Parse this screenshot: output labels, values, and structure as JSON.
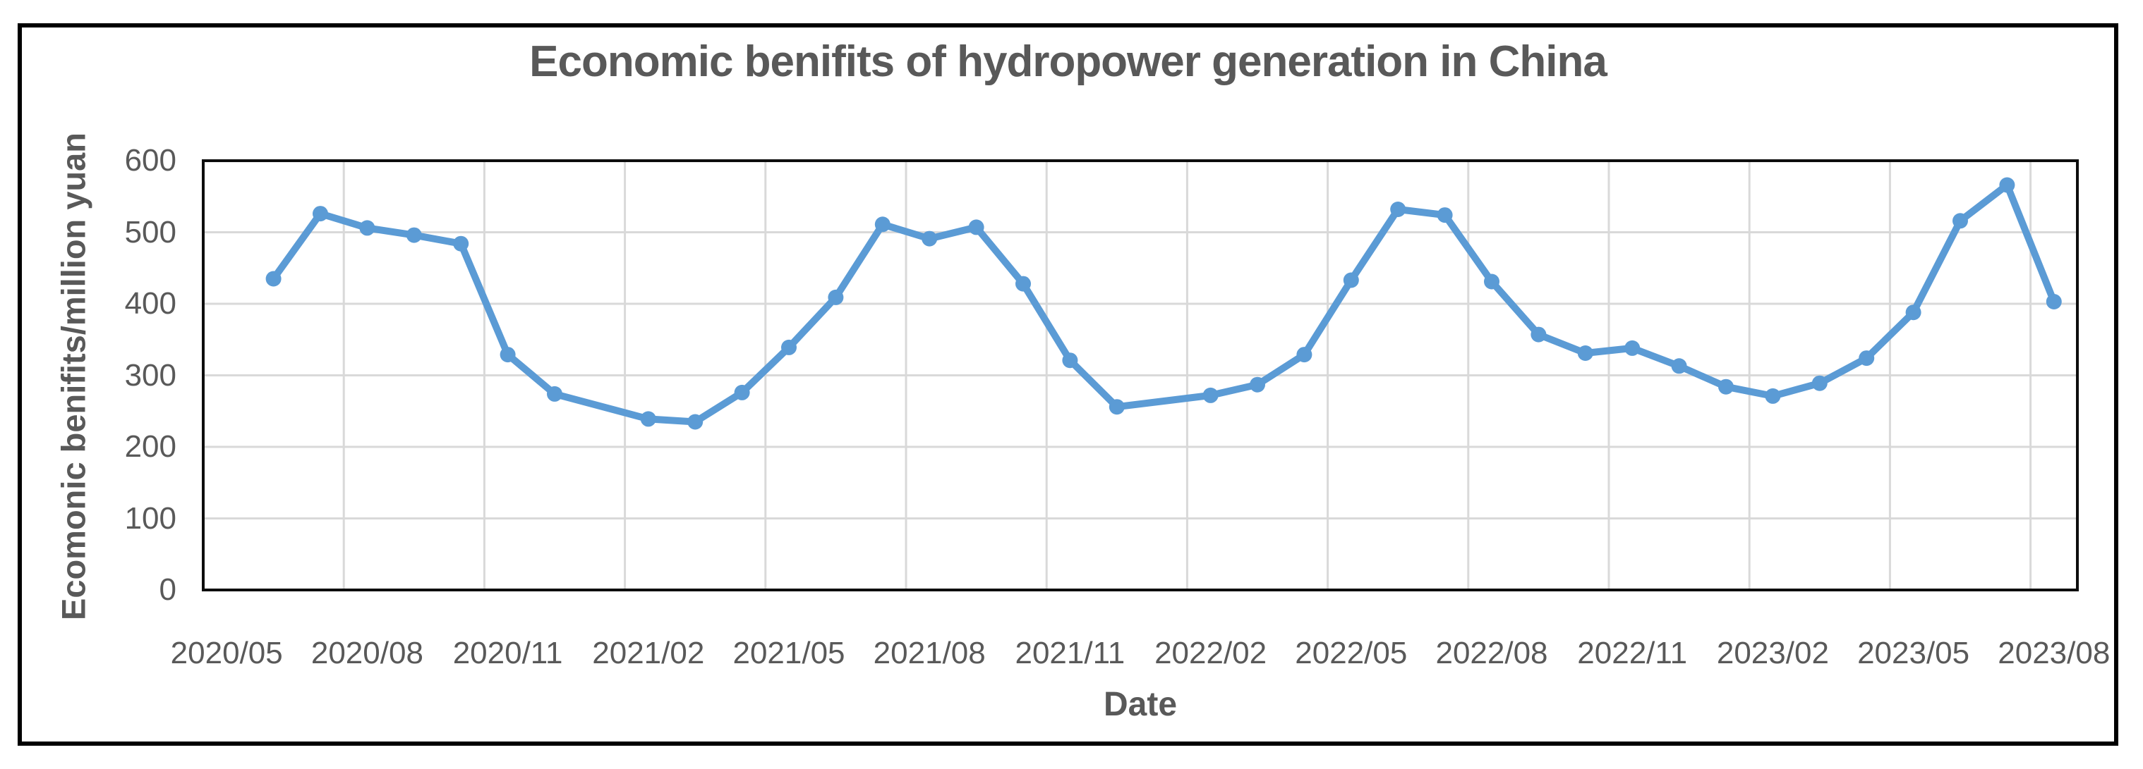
{
  "chart_data": {
    "type": "line",
    "title": "Economic benifits of hydropower generation in China",
    "xlabel": "Date",
    "ylabel": "Ecomonic benifits/million yuan",
    "categories": [
      "2020/05",
      "2020/06",
      "2020/07",
      "2020/08",
      "2020/09",
      "2020/10",
      "2020/11",
      "2020/12",
      "2021/01",
      "2021/02",
      "2021/03",
      "2021/04",
      "2021/05",
      "2021/06",
      "2021/07",
      "2021/08",
      "2021/09",
      "2021/10",
      "2021/11",
      "2021/12",
      "2022/01",
      "2022/02",
      "2022/03",
      "2022/04",
      "2022/05",
      "2022/06",
      "2022/07",
      "2022/08",
      "2022/09",
      "2022/10",
      "2022/11",
      "2022/12",
      "2023/01",
      "2023/02",
      "2023/03",
      "2023/04",
      "2023/05",
      "2023/06",
      "2023/07",
      "2023/08"
    ],
    "values": [
      null,
      435,
      526,
      506,
      496,
      484,
      329,
      274,
      null,
      239,
      235,
      276,
      339,
      409,
      511,
      491,
      507,
      428,
      321,
      256,
      null,
      272,
      287,
      329,
      433,
      532,
      524,
      431,
      357,
      331,
      338,
      313,
      284,
      271,
      289,
      324,
      388,
      516,
      566,
      403
    ],
    "ylim": [
      0,
      600
    ],
    "y_ticks": [
      0,
      100,
      200,
      300,
      400,
      500,
      600
    ],
    "x_tick_every": 3,
    "grid": true,
    "legend": false,
    "colors": {
      "line": "#5B9BD5",
      "gridline": "#D9D9D9",
      "axis_text": "#595959",
      "plot_border": "#0d0d0d",
      "frame_border": "#000000"
    }
  }
}
